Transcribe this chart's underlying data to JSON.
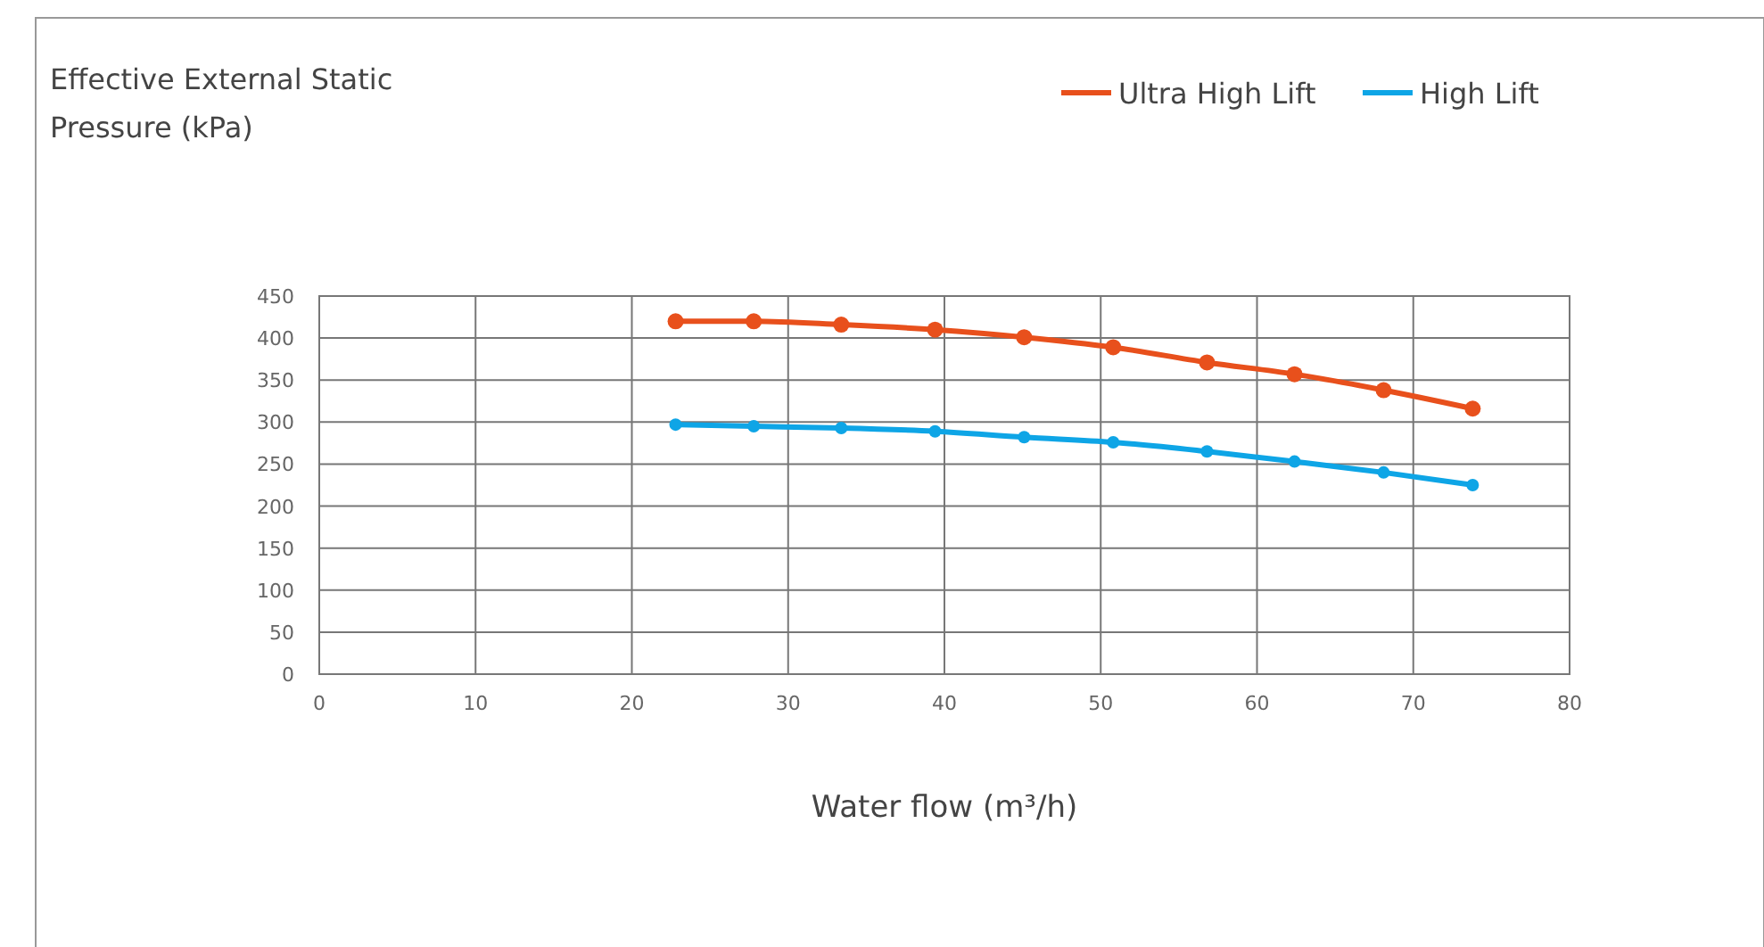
{
  "chart_data": {
    "type": "line",
    "ylabel": "Effective External Static Pressure (kPa)",
    "xlabel": "Water flow (m³/h)",
    "xlim": [
      0,
      80
    ],
    "xticks": [
      0,
      10,
      20,
      30,
      40,
      50,
      60,
      70,
      80
    ],
    "ylim": [
      0,
      450
    ],
    "yticks": [
      0,
      50,
      100,
      150,
      200,
      250,
      300,
      350,
      400,
      450
    ],
    "grid": true,
    "legend": "top right",
    "marker": "circle",
    "line_style": "solid",
    "series": [
      {
        "name": "Ultra High Lift",
        "color": "#e8501c",
        "x": [
          22.8,
          27.8,
          33.4,
          39.4,
          45.1,
          50.8,
          56.8,
          62.4,
          68.1,
          73.8
        ],
        "values": [
          420,
          420,
          416,
          410,
          401,
          389,
          371,
          357,
          338,
          316
        ]
      },
      {
        "name": "High Lift",
        "color": "#0ea5e6",
        "x": [
          22.8,
          27.8,
          33.4,
          39.4,
          45.1,
          50.8,
          56.8,
          62.4,
          68.1,
          73.8
        ],
        "values": [
          297,
          295,
          293,
          289,
          282,
          276,
          265,
          253,
          240,
          225
        ]
      }
    ]
  }
}
